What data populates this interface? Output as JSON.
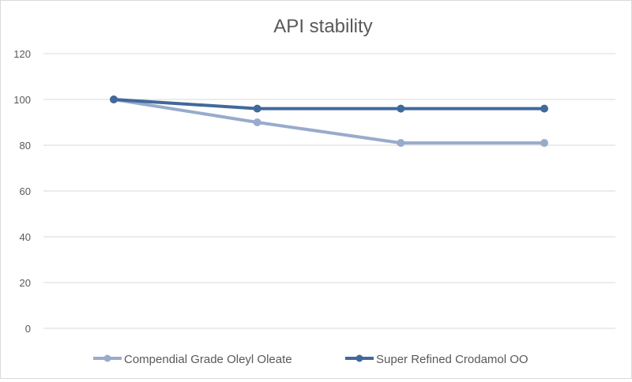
{
  "chart_data": {
    "type": "line",
    "title": "API stability",
    "xlabel": "",
    "ylabel": "",
    "ylim": [
      0,
      120
    ],
    "yticks": [
      0,
      20,
      40,
      60,
      80,
      100,
      120
    ],
    "grid": true,
    "legend_position": "bottom",
    "series": [
      {
        "name": "Compendial Grade Oleyl Oleate",
        "values": [
          100,
          90,
          81,
          81
        ],
        "color": "#98abcb"
      },
      {
        "name": "Super Refined Crodamol OO",
        "values": [
          100,
          96,
          96,
          96
        ],
        "color": "#41699b"
      }
    ]
  }
}
